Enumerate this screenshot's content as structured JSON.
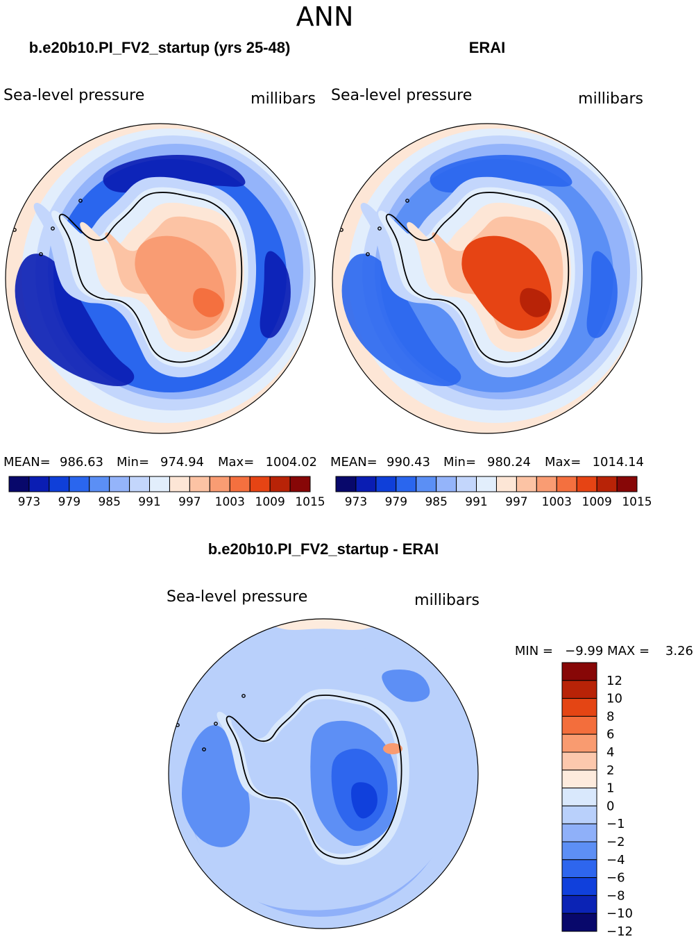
{
  "chart_data": {
    "type": "polar-contour",
    "figure_title": "ANN",
    "cmap": [
      "#08086b",
      "#0a1db3",
      "#0f3fd9",
      "#2a66ee",
      "#5b8ff5",
      "#94b4fa",
      "#c3d6fc",
      "#e2eefc",
      "#fde6d6",
      "#fcc3a4",
      "#f99c73",
      "#f4703f",
      "#e64414",
      "#b82307",
      "#870707"
    ],
    "diff_cmap": [
      "#08086b",
      "#0b23b5",
      "#1040dc",
      "#2e66ee",
      "#5d8ff5",
      "#8fb0f9",
      "#b9d0fb",
      "#d9e8fc",
      "#fdebdd",
      "#fcc8ad",
      "#f99b70",
      "#f36e3c",
      "#e44514",
      "#b82307",
      "#870707"
    ],
    "panels": [
      {
        "case_title": "b.e20b10.PI_FV2_startup (yrs 25-48)",
        "variable": "Sea-level pressure",
        "units": "millibars",
        "mean_label": "MEAN=",
        "mean": "986.63",
        "min_label": "Min=",
        "min": "974.94",
        "max_label": "Max=",
        "max": "1004.02",
        "levels": [
          "973",
          "979",
          "985",
          "991",
          "997",
          "1003",
          "1009",
          "1015"
        ],
        "field": {
          "ocean": 3,
          "plateau": 10,
          "peak": 11,
          "lows": 1
        }
      },
      {
        "case_title": "ERAI",
        "variable": "Sea-level pressure",
        "units": "millibars",
        "mean_label": "MEAN=",
        "mean": "990.43",
        "min_label": "Min=",
        "min": "980.24",
        "max_label": "Max=",
        "max": "1014.14",
        "levels": [
          "973",
          "979",
          "985",
          "991",
          "997",
          "1003",
          "1009",
          "1015"
        ],
        "field": {
          "ocean": 4,
          "plateau": 12,
          "peak": 13,
          "lows": 3
        }
      }
    ],
    "difference": {
      "title": "b.e20b10.PI_FV2_startup - ERAI",
      "variable": "Sea-level pressure",
      "units": "millibars",
      "min_max_text": "MIN =   −9.99 MAX =    3.26",
      "min": -9.99,
      "max": 3.26,
      "levels": [
        "12",
        "10",
        "8",
        "6",
        "4",
        "2",
        "1",
        "0",
        "−1",
        "−2",
        "−4",
        "−6",
        "−8",
        "−10",
        "−12"
      ]
    }
  }
}
